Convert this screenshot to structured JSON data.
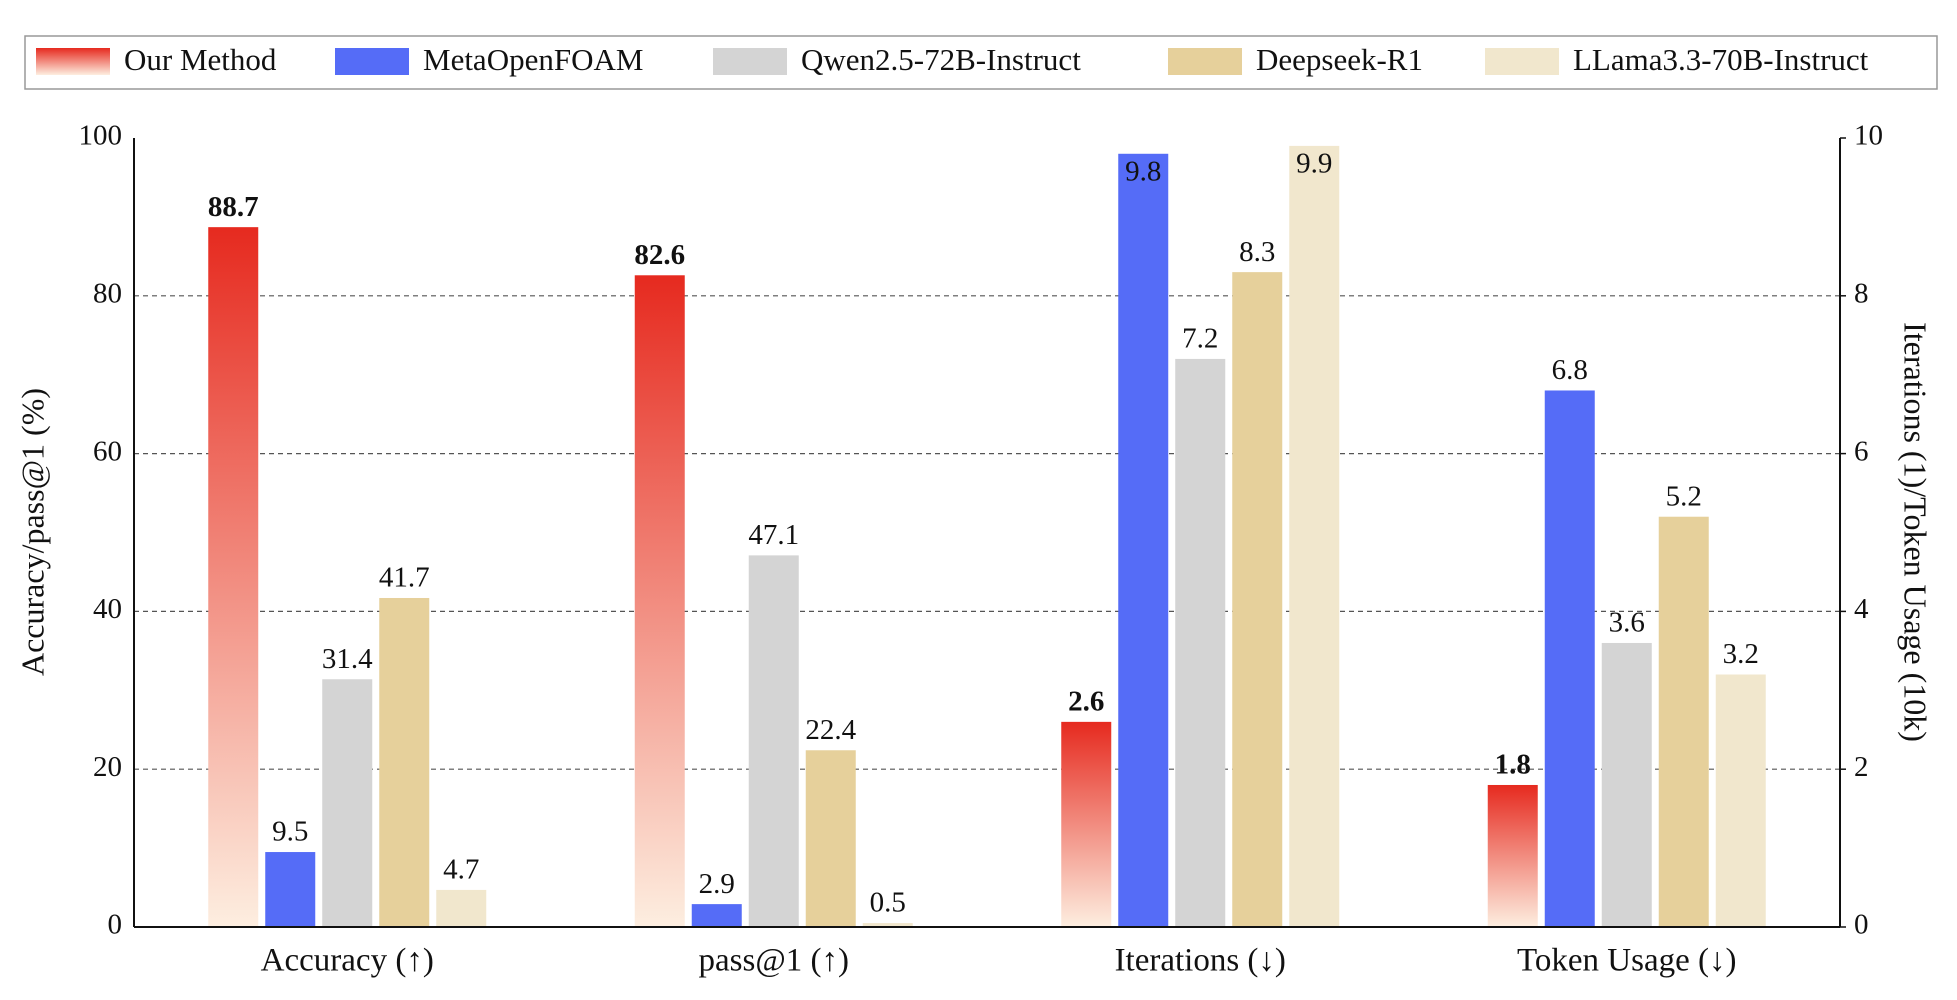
{
  "chart_data": {
    "type": "bar",
    "categories": [
      "Accuracy (↑)",
      "pass@1 (↑)",
      "Iterations (↓)",
      "Token Usage (↓)"
    ],
    "category_axes": [
      "y",
      "y",
      "y2",
      "y2"
    ],
    "ylabel": "Accuracy/pass@1 (%)",
    "y2label": "Iterations (1)/Token Usage (10k)",
    "ylim": [
      0,
      100
    ],
    "yticks": [
      0,
      20,
      40,
      60,
      80,
      100
    ],
    "y2lim": [
      0,
      10
    ],
    "y2ticks": [
      0,
      2,
      4,
      6,
      8,
      10
    ],
    "grid": true,
    "legend": "top",
    "series": [
      {
        "name": "Our Method",
        "color": "#e62a1f",
        "gradient": [
          "#e62a1f",
          "#fdeee0"
        ],
        "bold_labels": true,
        "values": [
          88.7,
          82.6,
          2.6,
          1.8
        ]
      },
      {
        "name": "MetaOpenFOAM",
        "color": "#556cf7",
        "values": [
          9.5,
          2.9,
          9.8,
          6.8
        ]
      },
      {
        "name": "Qwen2.5-72B-Instruct",
        "color": "#d4d4d4",
        "values": [
          31.4,
          47.1,
          7.2,
          3.6
        ]
      },
      {
        "name": "Deepseek-R1",
        "color": "#e6d09b",
        "values": [
          41.7,
          22.4,
          8.3,
          5.2
        ]
      },
      {
        "name": "LLama3.3-70B-Instruct",
        "color": "#f1e7cd",
        "values": [
          4.7,
          0.5,
          9.9,
          3.2
        ]
      }
    ]
  }
}
